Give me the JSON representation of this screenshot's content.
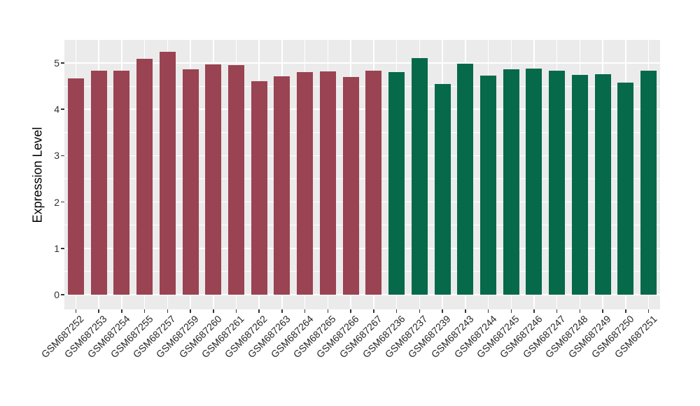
{
  "chart_data": {
    "type": "bar",
    "title": "",
    "ylabel": "Expression Level",
    "xlabel": "",
    "ylim": [
      0,
      5.5
    ],
    "yticks": [
      0,
      1,
      2,
      3,
      4,
      5
    ],
    "y_minor_ticks": [
      0.5,
      1.5,
      2.5,
      3.5,
      4.5
    ],
    "grid": "on",
    "legend": "none",
    "panel_background": "#EBEBEB",
    "grid_color": "#FFFFFF",
    "axis_text_color": "#303030",
    "series": [
      {
        "name": "group-red",
        "color": "#9A4352",
        "categories": [
          "GSM687252",
          "GSM687253",
          "GSM687254",
          "GSM687255",
          "GSM687257",
          "GSM687259",
          "GSM687260",
          "GSM687261",
          "GSM687262",
          "GSM687263",
          "GSM687264",
          "GSM687265",
          "GSM687266",
          "GSM687267"
        ],
        "values": [
          4.67,
          4.83,
          4.83,
          5.09,
          5.24,
          4.86,
          4.97,
          4.95,
          4.6,
          4.71,
          4.81,
          4.82,
          4.7,
          4.84
        ]
      },
      {
        "name": "group-green",
        "color": "#05694A",
        "categories": [
          "GSM687236",
          "GSM687237",
          "GSM687239",
          "GSM687243",
          "GSM687244",
          "GSM687245",
          "GSM687246",
          "GSM687247",
          "GSM687248",
          "GSM687249",
          "GSM687250",
          "GSM687251"
        ],
        "values": [
          4.81,
          5.1,
          4.54,
          4.98,
          4.73,
          4.87,
          4.88,
          4.84,
          4.75,
          4.76,
          4.57,
          4.84
        ]
      }
    ]
  }
}
